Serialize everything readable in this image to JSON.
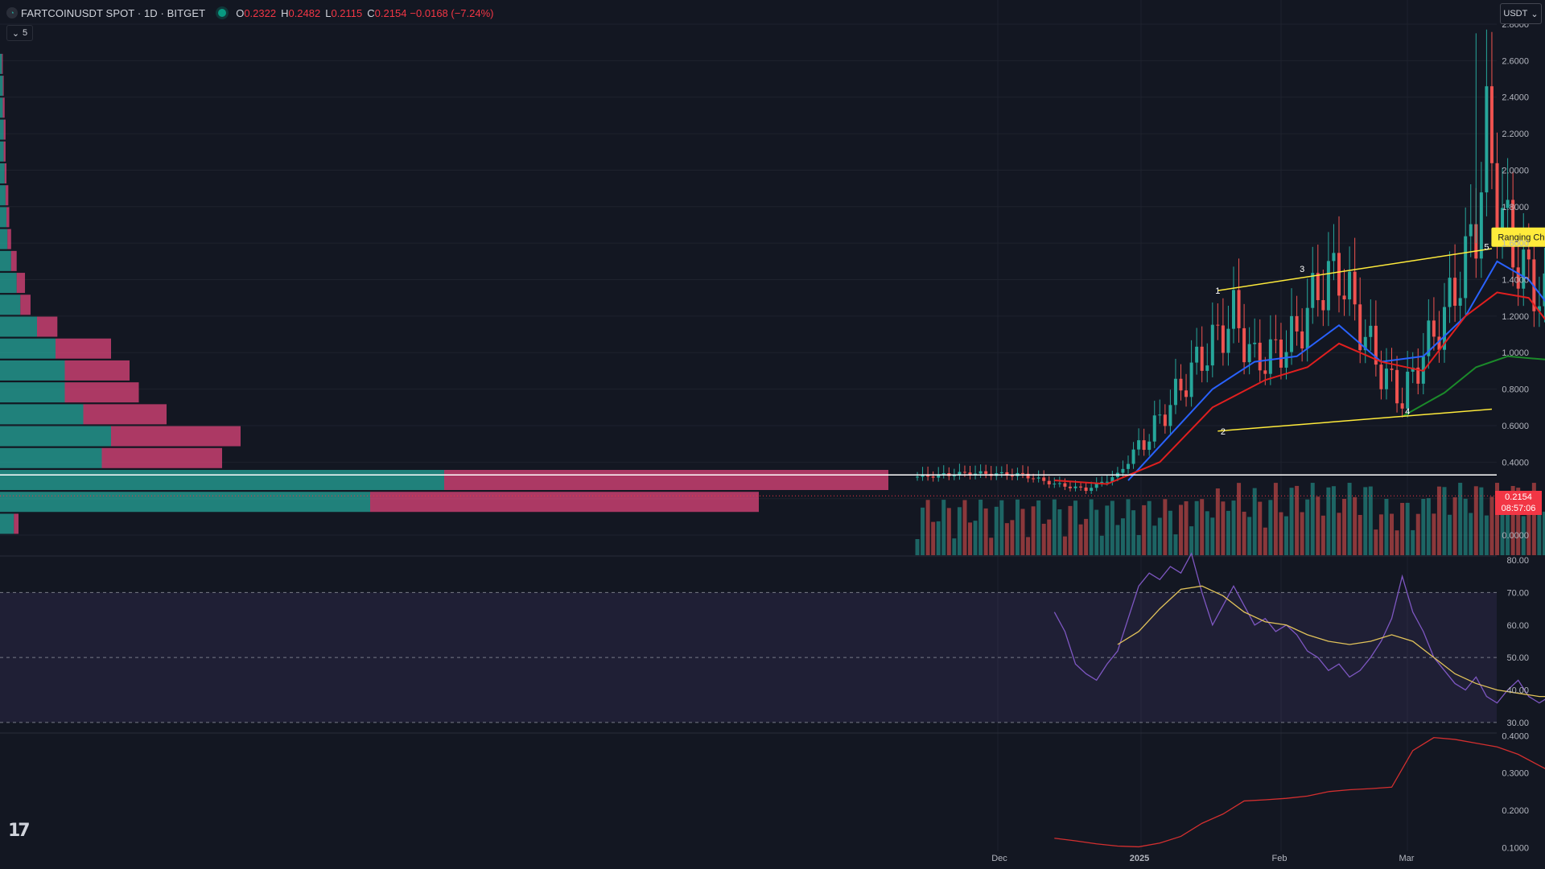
{
  "header": {
    "symbol_title": "FARTCOINUSDT SPOT · 1D · BITGET",
    "o_label": "O",
    "o_value": "0.2322",
    "h_label": "H",
    "h_value": "0.2482",
    "l_label": "L",
    "l_value": "0.2115",
    "c_label": "C",
    "c_value": "0.2154",
    "change": "−0.0168 (−7.24%)",
    "indicator_count": "5"
  },
  "currency_button": "USDT",
  "last_price": {
    "price": "0.2154",
    "countdown": "08:57:06"
  },
  "colors": {
    "up": "#26a69a",
    "down": "#ef5350",
    "ema_fast": "#2962ff",
    "ema_mid": "#e01f1f",
    "ema_slow": "#1b8a2a",
    "rsi": "#7e57c2",
    "rsi_ma": "#e2c35a",
    "annotation": "#ffeb3b"
  },
  "chart_data": [
    {
      "type": "candlestick",
      "title": "",
      "y_ticks": [
        "2.8000",
        "2.6000",
        "2.4000",
        "2.2000",
        "2.0000",
        "1.8000",
        "1.6000",
        "1.4000",
        "1.2000",
        "1.0000",
        "0.8000",
        "0.6000",
        "0.4000",
        "0.2000",
        "0.0000"
      ],
      "ylim": [
        -0.11,
        2.8
      ],
      "x_labels": [
        "Dec",
        "2025",
        "Feb",
        "Mar"
      ],
      "candles_summary": {
        "start": "2024-10-25",
        "end": "2025-03-09",
        "close_path": [
          [
            0,
            0.32
          ],
          [
            10,
            0.34
          ],
          [
            20,
            0.33
          ],
          [
            26,
            0.28
          ],
          [
            32,
            0.25
          ],
          [
            38,
            0.33
          ],
          [
            44,
            0.55
          ],
          [
            48,
            0.72
          ],
          [
            52,
            0.9
          ],
          [
            56,
            1.05
          ],
          [
            60,
            1.2
          ],
          [
            64,
            0.95
          ],
          [
            68,
            1.0
          ],
          [
            72,
            1.1
          ],
          [
            76,
            1.35
          ],
          [
            80,
            1.45
          ],
          [
            84,
            1.15
          ],
          [
            88,
            0.9
          ],
          [
            92,
            0.75
          ],
          [
            96,
            1.0
          ],
          [
            100,
            1.2
          ],
          [
            104,
            1.5
          ],
          [
            106,
            1.7
          ],
          [
            108,
            2.2
          ],
          [
            110,
            1.85
          ],
          [
            113,
            1.55
          ],
          [
            116,
            1.4
          ],
          [
            120,
            1.25
          ],
          [
            124,
            1.15
          ],
          [
            128,
            0.85
          ],
          [
            132,
            0.75
          ],
          [
            136,
            0.7
          ],
          [
            140,
            0.55
          ],
          [
            144,
            0.5
          ],
          [
            148,
            0.45
          ],
          [
            152,
            0.38
          ],
          [
            156,
            0.35
          ],
          [
            160,
            0.3
          ],
          [
            164,
            0.33
          ],
          [
            168,
            0.28
          ],
          [
            172,
            0.22
          ]
        ]
      },
      "ema_fast": [
        [
          40,
          0.3
        ],
        [
          48,
          0.55
        ],
        [
          56,
          0.8
        ],
        [
          64,
          0.95
        ],
        [
          72,
          0.98
        ],
        [
          80,
          1.15
        ],
        [
          88,
          0.95
        ],
        [
          96,
          0.98
        ],
        [
          104,
          1.2
        ],
        [
          110,
          1.5
        ],
        [
          116,
          1.4
        ],
        [
          124,
          1.1
        ],
        [
          132,
          0.75
        ],
        [
          140,
          0.6
        ],
        [
          148,
          0.5
        ],
        [
          156,
          0.38
        ],
        [
          164,
          0.3
        ],
        [
          172,
          0.25
        ]
      ],
      "ema_mid": [
        [
          26,
          0.3
        ],
        [
          36,
          0.28
        ],
        [
          46,
          0.4
        ],
        [
          56,
          0.7
        ],
        [
          66,
          0.85
        ],
        [
          74,
          0.92
        ],
        [
          80,
          1.05
        ],
        [
          88,
          0.95
        ],
        [
          96,
          0.9
        ],
        [
          104,
          1.2
        ],
        [
          110,
          1.33
        ],
        [
          116,
          1.3
        ],
        [
          124,
          1.0
        ],
        [
          132,
          0.75
        ],
        [
          140,
          0.62
        ],
        [
          148,
          0.52
        ],
        [
          156,
          0.42
        ],
        [
          164,
          0.36
        ],
        [
          172,
          0.32
        ]
      ],
      "ema_slow": [
        [
          92,
          0.65
        ],
        [
          100,
          0.78
        ],
        [
          106,
          0.92
        ],
        [
          112,
          0.98
        ],
        [
          120,
          0.96
        ],
        [
          128,
          0.88
        ],
        [
          136,
          0.8
        ],
        [
          144,
          0.7
        ],
        [
          152,
          0.6
        ],
        [
          160,
          0.55
        ],
        [
          168,
          0.5
        ]
      ],
      "horizontal_line": 0.33,
      "channel": {
        "upper": [
          [
            57,
            1.34
          ],
          [
            109,
            1.57
          ]
        ],
        "lower": [
          [
            57,
            0.57
          ],
          [
            109,
            0.69
          ]
        ],
        "points": [
          [
            "1",
            57,
            1.34
          ],
          [
            "2",
            58,
            0.57
          ],
          [
            "3",
            73,
            1.46
          ],
          [
            "4",
            93,
            0.68
          ],
          [
            "5",
            108,
            1.58
          ]
        ]
      },
      "annotation": "Ranging Channel",
      "zones": [
        [
          134,
          150,
          0.72,
          0.86
        ],
        [
          134,
          151,
          0.54,
          0.62
        ]
      ],
      "volume_profile": [
        [
          2.58,
          0.002,
          0.001
        ],
        [
          2.46,
          0.003,
          0.001
        ],
        [
          2.34,
          0.003,
          0.002
        ],
        [
          2.22,
          0.004,
          0.002
        ],
        [
          2.1,
          0.004,
          0.002
        ],
        [
          1.98,
          0.005,
          0.002
        ],
        [
          1.86,
          0.006,
          0.003
        ],
        [
          1.74,
          0.007,
          0.003
        ],
        [
          1.62,
          0.008,
          0.004
        ],
        [
          1.5,
          0.012,
          0.006
        ],
        [
          1.38,
          0.018,
          0.009
        ],
        [
          1.26,
          0.022,
          0.011
        ],
        [
          1.14,
          0.04,
          0.022
        ],
        [
          1.02,
          0.06,
          0.06
        ],
        [
          0.9,
          0.07,
          0.07
        ],
        [
          0.78,
          0.07,
          0.08
        ],
        [
          0.66,
          0.09,
          0.09
        ],
        [
          0.54,
          0.12,
          0.14
        ],
        [
          0.42,
          0.11,
          0.13
        ],
        [
          0.3,
          0.48,
          0.48
        ],
        [
          0.18,
          0.4,
          0.42
        ],
        [
          0.06,
          0.015,
          0.005
        ]
      ]
    },
    {
      "type": "line",
      "title": "",
      "y_ticks": [
        "80.00",
        "70.00",
        "60.00",
        "50.00",
        "40.00",
        "30.00"
      ],
      "ylim": [
        27,
        81
      ],
      "band": [
        30,
        70
      ],
      "rsi": [
        [
          26,
          64
        ],
        [
          28,
          58
        ],
        [
          30,
          48
        ],
        [
          32,
          45
        ],
        [
          34,
          43
        ],
        [
          36,
          48
        ],
        [
          38,
          52
        ],
        [
          40,
          62
        ],
        [
          42,
          72
        ],
        [
          44,
          76
        ],
        [
          46,
          74
        ],
        [
          48,
          78
        ],
        [
          50,
          76
        ],
        [
          52,
          82
        ],
        [
          54,
          70
        ],
        [
          56,
          60
        ],
        [
          58,
          66
        ],
        [
          60,
          72
        ],
        [
          62,
          66
        ],
        [
          64,
          60
        ],
        [
          66,
          62
        ],
        [
          68,
          58
        ],
        [
          70,
          60
        ],
        [
          72,
          57
        ],
        [
          74,
          52
        ],
        [
          76,
          50
        ],
        [
          78,
          46
        ],
        [
          80,
          48
        ],
        [
          82,
          44
        ],
        [
          84,
          46
        ],
        [
          86,
          50
        ],
        [
          88,
          55
        ],
        [
          90,
          62
        ],
        [
          92,
          75
        ],
        [
          94,
          64
        ],
        [
          96,
          58
        ],
        [
          98,
          50
        ],
        [
          100,
          46
        ],
        [
          102,
          42
        ],
        [
          104,
          40
        ],
        [
          106,
          44
        ],
        [
          108,
          38
        ],
        [
          110,
          36
        ],
        [
          112,
          40
        ],
        [
          114,
          43
        ],
        [
          116,
          38
        ],
        [
          118,
          36
        ],
        [
          120,
          38
        ],
        [
          122,
          41
        ],
        [
          124,
          40
        ],
        [
          126,
          36
        ],
        [
          128,
          38
        ],
        [
          130,
          40
        ],
        [
          132,
          37
        ],
        [
          134,
          36
        ],
        [
          136,
          40
        ],
        [
          138,
          38
        ],
        [
          140,
          37
        ],
        [
          142,
          40
        ],
        [
          144,
          41
        ],
        [
          146,
          38
        ],
        [
          148,
          40
        ],
        [
          150,
          43
        ],
        [
          152,
          40
        ],
        [
          154,
          42
        ],
        [
          156,
          40
        ],
        [
          158,
          39
        ]
      ],
      "rsi_ma": [
        [
          38,
          54
        ],
        [
          42,
          58
        ],
        [
          46,
          65
        ],
        [
          50,
          71
        ],
        [
          54,
          72
        ],
        [
          58,
          69
        ],
        [
          62,
          64
        ],
        [
          66,
          61
        ],
        [
          70,
          60
        ],
        [
          74,
          57
        ],
        [
          78,
          55
        ],
        [
          82,
          54
        ],
        [
          86,
          55
        ],
        [
          90,
          57
        ],
        [
          94,
          55
        ],
        [
          98,
          50
        ],
        [
          102,
          45
        ],
        [
          106,
          42
        ],
        [
          110,
          40
        ],
        [
          114,
          39
        ],
        [
          118,
          38
        ],
        [
          122,
          38
        ],
        [
          126,
          38
        ],
        [
          130,
          38
        ],
        [
          134,
          38
        ],
        [
          138,
          38
        ],
        [
          142,
          38
        ],
        [
          146,
          38
        ],
        [
          150,
          39
        ],
        [
          154,
          39
        ],
        [
          158,
          39
        ]
      ]
    },
    {
      "type": "line",
      "title": "",
      "y_ticks": [
        "0.4000",
        "0.3000",
        "0.2000",
        "0.1000"
      ],
      "ylim": [
        0.09,
        0.405
      ],
      "values": [
        [
          26,
          0.125
        ],
        [
          30,
          0.118
        ],
        [
          34,
          0.11
        ],
        [
          38,
          0.104
        ],
        [
          42,
          0.102
        ],
        [
          46,
          0.112
        ],
        [
          50,
          0.13
        ],
        [
          54,
          0.165
        ],
        [
          58,
          0.19
        ],
        [
          62,
          0.225
        ],
        [
          66,
          0.228
        ],
        [
          70,
          0.232
        ],
        [
          74,
          0.238
        ],
        [
          78,
          0.25
        ],
        [
          82,
          0.255
        ],
        [
          86,
          0.258
        ],
        [
          90,
          0.262
        ],
        [
          94,
          0.36
        ],
        [
          98,
          0.395
        ],
        [
          102,
          0.39
        ],
        [
          106,
          0.38
        ],
        [
          110,
          0.37
        ],
        [
          114,
          0.35
        ],
        [
          118,
          0.32
        ],
        [
          122,
          0.29
        ],
        [
          126,
          0.26
        ],
        [
          130,
          0.23
        ],
        [
          134,
          0.2
        ],
        [
          138,
          0.17
        ],
        [
          142,
          0.14
        ],
        [
          146,
          0.12
        ],
        [
          150,
          0.11
        ],
        [
          154,
          0.105
        ],
        [
          158,
          0.098
        ]
      ]
    }
  ]
}
